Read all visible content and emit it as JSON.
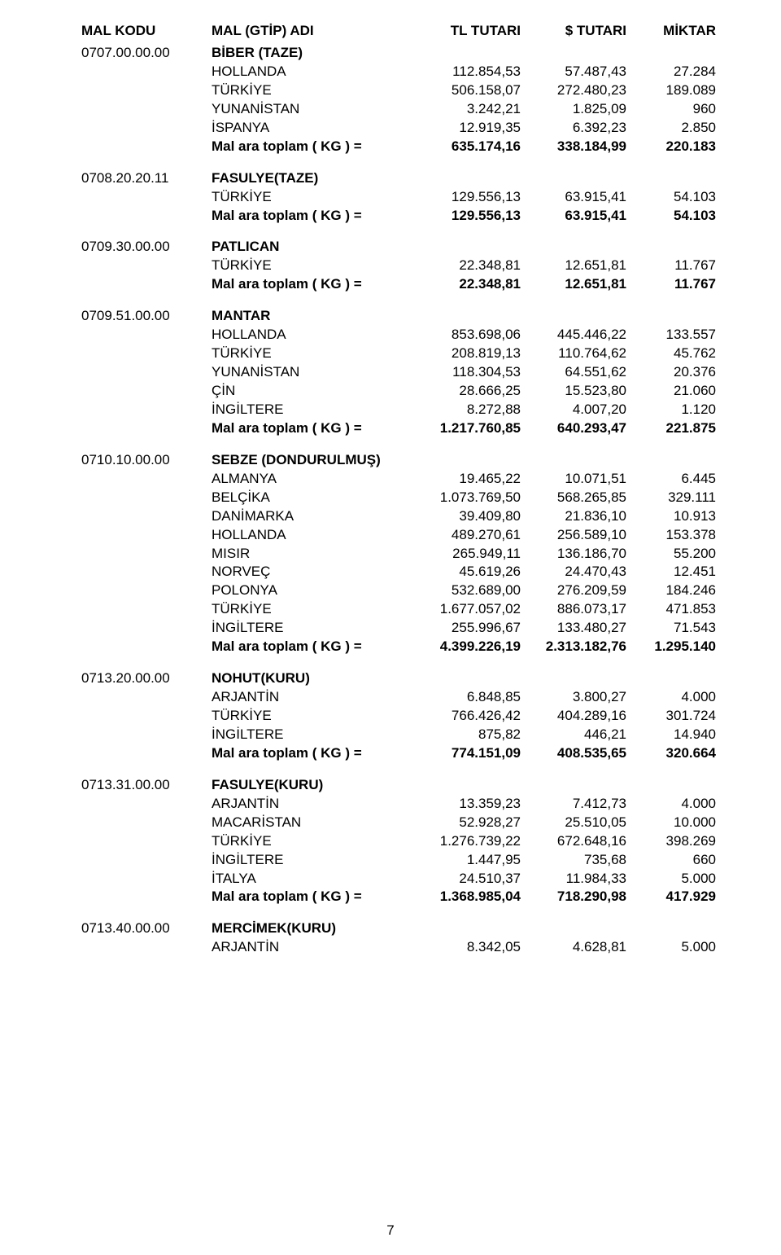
{
  "header": {
    "code": "MAL KODU",
    "name": "MAL (GTİP) ADI",
    "tl": "TL TUTARI",
    "usd": "$ TUTARI",
    "qty": "MİKTAR"
  },
  "subtotal_label": "Mal ara toplam  ( KG ) =",
  "page_number": "7",
  "sections": [
    {
      "code": "0707.00.00.00",
      "title": "BİBER (TAZE)",
      "rows": [
        {
          "name": "HOLLANDA",
          "tl": "112.854,53",
          "usd": "57.487,43",
          "qty": "27.284"
        },
        {
          "name": "TÜRKİYE",
          "tl": "506.158,07",
          "usd": "272.480,23",
          "qty": "189.089"
        },
        {
          "name": "YUNANİSTAN",
          "tl": "3.242,21",
          "usd": "1.825,09",
          "qty": "960"
        },
        {
          "name": "İSPANYA",
          "tl": "12.919,35",
          "usd": "6.392,23",
          "qty": "2.850"
        }
      ],
      "subtotal": {
        "tl": "635.174,16",
        "usd": "338.184,99",
        "qty": "220.183"
      }
    },
    {
      "code": "0708.20.20.11",
      "title": "FASULYE(TAZE)",
      "rows": [
        {
          "name": "TÜRKİYE",
          "tl": "129.556,13",
          "usd": "63.915,41",
          "qty": "54.103"
        }
      ],
      "subtotal": {
        "tl": "129.556,13",
        "usd": "63.915,41",
        "qty": "54.103"
      }
    },
    {
      "code": "0709.30.00.00",
      "title": "PATLICAN",
      "rows": [
        {
          "name": "TÜRKİYE",
          "tl": "22.348,81",
          "usd": "12.651,81",
          "qty": "11.767"
        }
      ],
      "subtotal": {
        "tl": "22.348,81",
        "usd": "12.651,81",
        "qty": "11.767"
      }
    },
    {
      "code": "0709.51.00.00",
      "title": "MANTAR",
      "rows": [
        {
          "name": "HOLLANDA",
          "tl": "853.698,06",
          "usd": "445.446,22",
          "qty": "133.557"
        },
        {
          "name": "TÜRKİYE",
          "tl": "208.819,13",
          "usd": "110.764,62",
          "qty": "45.762"
        },
        {
          "name": "YUNANİSTAN",
          "tl": "118.304,53",
          "usd": "64.551,62",
          "qty": "20.376"
        },
        {
          "name": "ÇİN",
          "tl": "28.666,25",
          "usd": "15.523,80",
          "qty": "21.060"
        },
        {
          "name": "İNGİLTERE",
          "tl": "8.272,88",
          "usd": "4.007,20",
          "qty": "1.120"
        }
      ],
      "subtotal": {
        "tl": "1.217.760,85",
        "usd": "640.293,47",
        "qty": "221.875"
      }
    },
    {
      "code": "0710.10.00.00",
      "title": "SEBZE (DONDURULMUŞ)",
      "rows": [
        {
          "name": "ALMANYA",
          "tl": "19.465,22",
          "usd": "10.071,51",
          "qty": "6.445"
        },
        {
          "name": "BELÇİKA",
          "tl": "1.073.769,50",
          "usd": "568.265,85",
          "qty": "329.111"
        },
        {
          "name": "DANİMARKA",
          "tl": "39.409,80",
          "usd": "21.836,10",
          "qty": "10.913"
        },
        {
          "name": "HOLLANDA",
          "tl": "489.270,61",
          "usd": "256.589,10",
          "qty": "153.378"
        },
        {
          "name": "MISIR",
          "tl": "265.949,11",
          "usd": "136.186,70",
          "qty": "55.200"
        },
        {
          "name": "NORVEÇ",
          "tl": "45.619,26",
          "usd": "24.470,43",
          "qty": "12.451"
        },
        {
          "name": "POLONYA",
          "tl": "532.689,00",
          "usd": "276.209,59",
          "qty": "184.246"
        },
        {
          "name": "TÜRKİYE",
          "tl": "1.677.057,02",
          "usd": "886.073,17",
          "qty": "471.853"
        },
        {
          "name": "İNGİLTERE",
          "tl": "255.996,67",
          "usd": "133.480,27",
          "qty": "71.543"
        }
      ],
      "subtotal": {
        "tl": "4.399.226,19",
        "usd": "2.313.182,76",
        "qty": "1.295.140"
      }
    },
    {
      "code": "0713.20.00.00",
      "title": "NOHUT(KURU)",
      "rows": [
        {
          "name": "ARJANTİN",
          "tl": "6.848,85",
          "usd": "3.800,27",
          "qty": "4.000"
        },
        {
          "name": "TÜRKİYE",
          "tl": "766.426,42",
          "usd": "404.289,16",
          "qty": "301.724"
        },
        {
          "name": "İNGİLTERE",
          "tl": "875,82",
          "usd": "446,21",
          "qty": "14.940"
        }
      ],
      "subtotal": {
        "tl": "774.151,09",
        "usd": "408.535,65",
        "qty": "320.664"
      }
    },
    {
      "code": "0713.31.00.00",
      "title": "FASULYE(KURU)",
      "rows": [
        {
          "name": "ARJANTİN",
          "tl": "13.359,23",
          "usd": "7.412,73",
          "qty": "4.000"
        },
        {
          "name": "MACARİSTAN",
          "tl": "52.928,27",
          "usd": "25.510,05",
          "qty": "10.000"
        },
        {
          "name": "TÜRKİYE",
          "tl": "1.276.739,22",
          "usd": "672.648,16",
          "qty": "398.269"
        },
        {
          "name": "İNGİLTERE",
          "tl": "1.447,95",
          "usd": "735,68",
          "qty": "660"
        },
        {
          "name": "İTALYA",
          "tl": "24.510,37",
          "usd": "11.984,33",
          "qty": "5.000"
        }
      ],
      "subtotal": {
        "tl": "1.368.985,04",
        "usd": "718.290,98",
        "qty": "417.929"
      }
    },
    {
      "code": "0713.40.00.00",
      "title": "MERCİMEK(KURU)",
      "rows": [
        {
          "name": "ARJANTİN",
          "tl": "8.342,05",
          "usd": "4.628,81",
          "qty": "5.000"
        }
      ],
      "subtotal": null
    }
  ]
}
